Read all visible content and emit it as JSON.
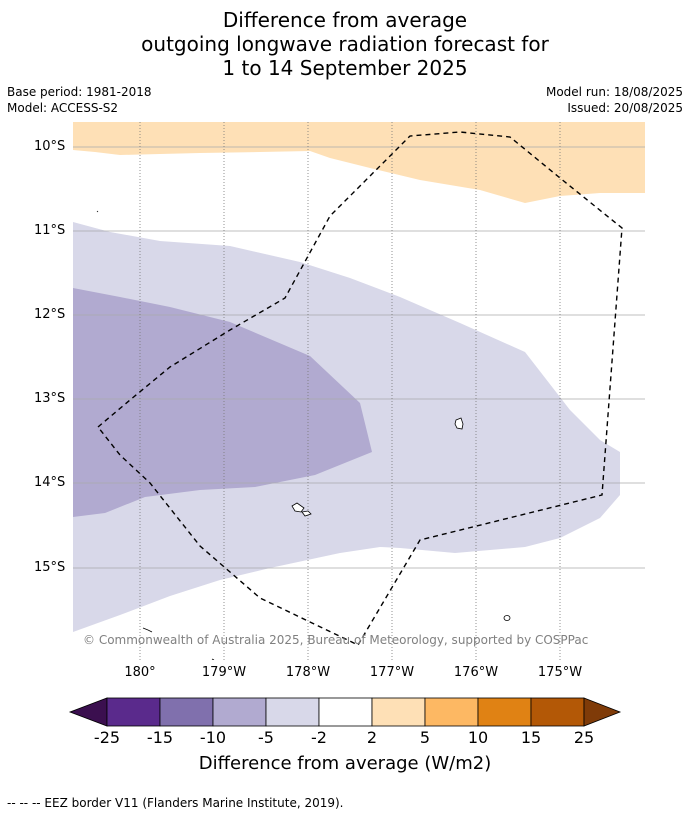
{
  "title": {
    "line1": "Difference from average",
    "line2": "outgoing longwave radiation forecast for",
    "line3": "1 to 14 September 2025"
  },
  "meta": {
    "base_period": "Base period: 1981-2018",
    "model": "Model: ACCESS-S2",
    "model_run": "Model run: 18/08/2025",
    "issued": "Issued: 20/08/2025"
  },
  "map": {
    "lat_labels": [
      "10°S",
      "11°S",
      "12°S",
      "13°S",
      "14°S",
      "15°S"
    ],
    "lon_labels": [
      "180°",
      "179°W",
      "178°W",
      "177°W",
      "176°W",
      "175°W"
    ],
    "credit": "© Commonwealth of Australia 2025, Bureau of Meteorology, supported by COSPPac",
    "legend_colors": {
      "below_-25": "#3b0f4f",
      "-25_to_-15": "#5a2a8c",
      "-15_to_-10": "#8070ad",
      "-10_to_-5": "#b1aad0",
      "-5_to_-2": "#d8d8e9",
      "-2_to_2": "#ffffff",
      "2_to_5": "#fee0b6",
      "5_to_10": "#fdb863",
      "10_to_15": "#e08214",
      "15_to_25": "#b35806",
      "above_25": "#7f3b08"
    }
  },
  "colorbar": {
    "ticks": [
      "-25",
      "-15",
      "-10",
      "-5",
      "-2",
      "2",
      "5",
      "10",
      "15",
      "25"
    ],
    "title": "Difference from average (W/m2)"
  },
  "footer": {
    "eez_legend": "--  --  -- EEZ border V11 (Flanders Marine Institute, 2019)."
  }
}
